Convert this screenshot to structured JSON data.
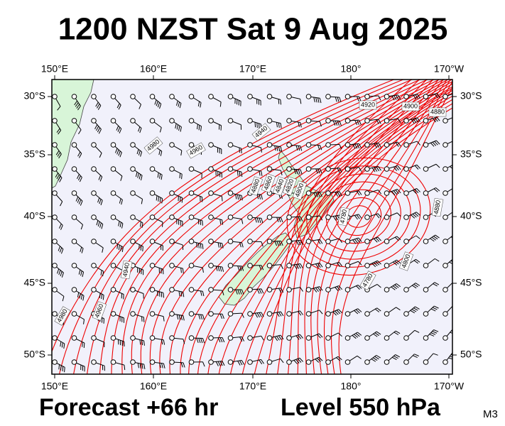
{
  "header": {
    "title": "1200 NZST Sat 9 Aug 2025"
  },
  "map": {
    "lon_labels": [
      "150°E",
      "160°E",
      "170°E",
      "180°",
      "170°W"
    ],
    "lat_labels": [
      "30°S",
      "35°S",
      "40°S",
      "45°S",
      "50°S"
    ],
    "contour_labels": [
      "4920",
      "4900",
      "4880",
      "4940",
      "4960",
      "4980",
      "4940",
      "4960",
      "4980",
      "4880",
      "4860",
      "4840",
      "4820",
      "4800",
      "4780",
      "4780",
      "4800",
      "4880"
    ]
  },
  "footer": {
    "forecast": "Forecast +66 hr",
    "level": "Level 550 hPa",
    "model": "M3"
  }
}
